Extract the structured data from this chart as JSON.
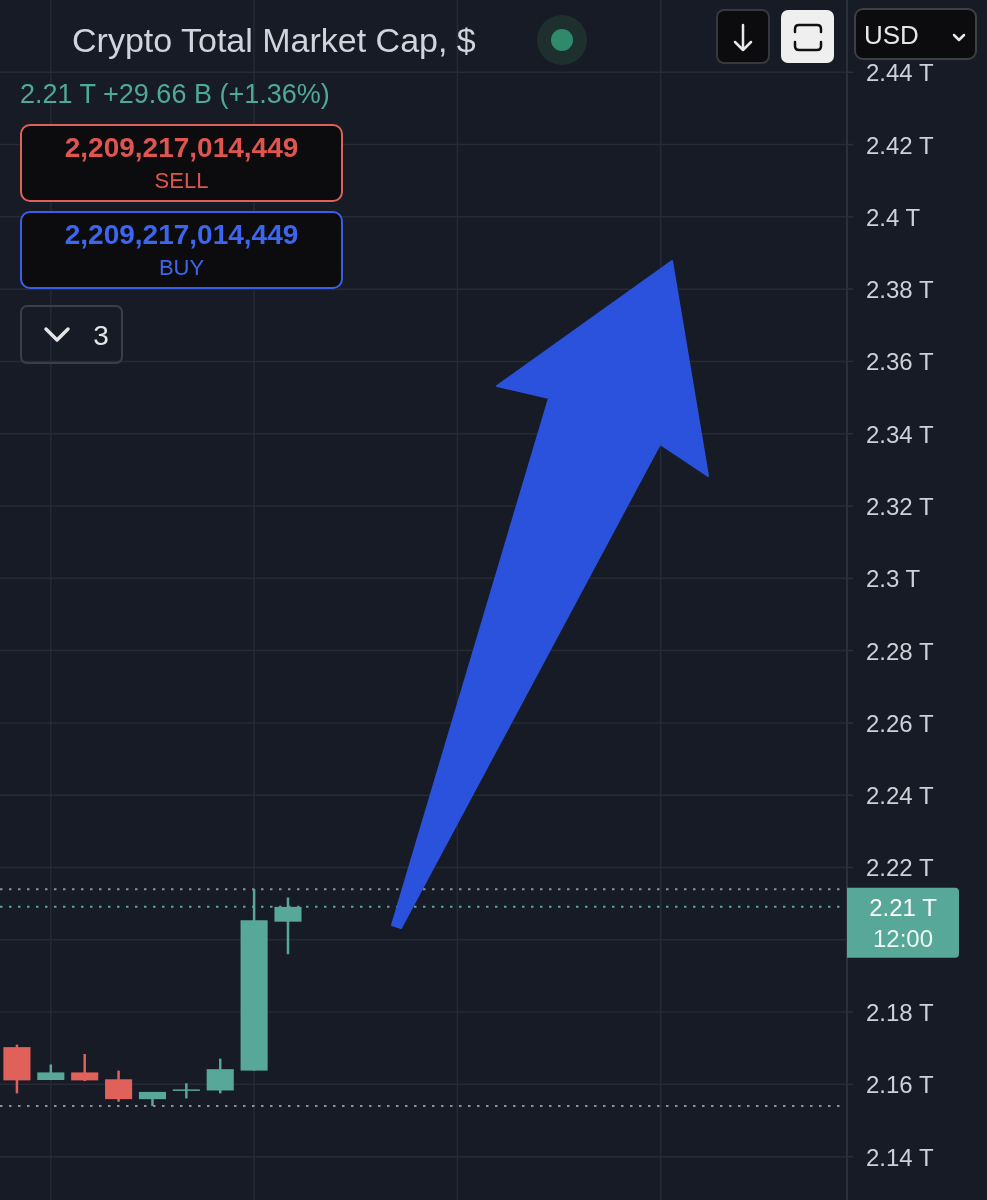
{
  "chart_data": {
    "type": "candlestick",
    "title": "Crypto Total Market Cap, $",
    "subtitle": "2.21 T +29.66 B (+1.36%)",
    "categories": [
      null,
      null,
      null,
      null,
      null,
      null,
      null,
      null,
      null,
      null,
      null,
      null,
      null,
      null,
      null,
      null,
      null,
      null,
      null,
      null,
      null,
      null,
      null,
      null,
      null
    ],
    "ohlc": [
      [
        2.1703,
        2.171,
        2.1575,
        2.1611
      ],
      [
        2.1612,
        2.1655,
        2.1612,
        2.1633
      ],
      [
        2.1633,
        2.1684,
        2.1609,
        2.1611
      ],
      [
        2.1614,
        2.1638,
        2.1552,
        2.1559
      ],
      [
        2.1559,
        2.1579,
        2.154,
        2.1579
      ],
      [
        2.1582,
        2.1603,
        2.1561,
        2.1586
      ],
      [
        2.1583,
        2.1671,
        2.1575,
        2.1642
      ],
      [
        2.1638,
        2.214,
        2.1638,
        2.2054
      ],
      [
        2.205,
        2.2117,
        2.196,
        2.2091
      ],
      null,
      null,
      null,
      null,
      null,
      null,
      null,
      null,
      null,
      null,
      null,
      null,
      null,
      null,
      null,
      null
    ],
    "colors": [
      "#e0605a",
      "#57a898",
      "#e0605a",
      "#e0605a",
      "#57a898",
      "#57a898",
      "#57a898",
      "#57a898",
      "#57a898",
      null,
      null,
      null,
      null,
      null,
      null,
      null,
      null,
      null,
      null,
      null,
      null,
      null,
      null,
      null,
      null
    ],
    "ylim": [
      2.128,
      2.46
    ],
    "yticks": [
      {
        "value": 2.14,
        "label": "2.14 T"
      },
      {
        "value": 2.16,
        "label": "2.16 T"
      },
      {
        "value": 2.18,
        "label": "2.18 T"
      },
      {
        "value": 2.2,
        "label": null
      },
      {
        "value": 2.22,
        "label": "2.22 T"
      },
      {
        "value": 2.24,
        "label": "2.24 T"
      },
      {
        "value": 2.26,
        "label": "2.26 T"
      },
      {
        "value": 2.28,
        "label": "2.28 T"
      },
      {
        "value": 2.3,
        "label": "2.3 T"
      },
      {
        "value": 2.32,
        "label": "2.32 T"
      },
      {
        "value": 2.34,
        "label": "2.34 T"
      },
      {
        "value": 2.36,
        "label": "2.36 T"
      },
      {
        "value": 2.38,
        "label": "2.38 T"
      },
      {
        "value": 2.4,
        "label": "2.4 T"
      },
      {
        "value": 2.42,
        "label": "2.42 T"
      },
      {
        "value": 2.44,
        "label": "2.44 T"
      }
    ],
    "grid": true,
    "tick_labels": "y",
    "ref_lines": [
      {
        "axis": "y",
        "value": 2.214,
        "color": "#8d9099",
        "line_style": "dotted"
      },
      {
        "axis": "y",
        "value": 2.2091,
        "label": "2.21 T",
        "color": "#57a898",
        "line_style": "dotted"
      },
      {
        "axis": "y",
        "value": 2.154,
        "color": "#8d9099",
        "line_style": "dotted"
      }
    ],
    "annotations": [
      "2,209,217,014,449",
      "SELL",
      "2,209,217,014,449",
      "BUY",
      "3",
      "USD",
      "12:00"
    ]
  }
}
